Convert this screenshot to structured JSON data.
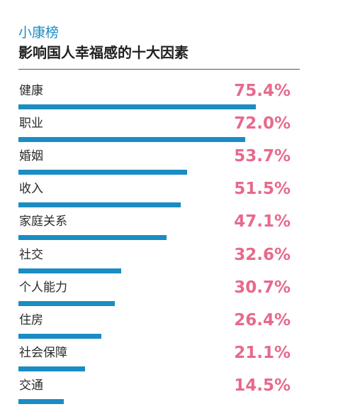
{
  "header": {
    "kicker": "小康榜",
    "title": "影响国人幸福感的十大因素"
  },
  "colors": {
    "accent_blue": "#1b8cc4",
    "value_pink": "#e76a8c",
    "text_dark": "#222222"
  },
  "chart_data": {
    "type": "bar",
    "orientation": "horizontal",
    "title": "影响国人幸福感的十大因素",
    "unit": "%",
    "categories": [
      "健康",
      "职业",
      "婚姻",
      "收入",
      "家庭关系",
      "社交",
      "个人能力",
      "住房",
      "社会保障",
      "交通"
    ],
    "values": [
      75.4,
      72.0,
      53.7,
      51.5,
      47.1,
      32.6,
      30.7,
      26.4,
      21.1,
      14.5
    ],
    "value_labels": [
      "75.4%",
      "72.0%",
      "53.7%",
      "51.5%",
      "47.1%",
      "32.6%",
      "30.7%",
      "26.4%",
      "21.1%",
      "14.5%"
    ],
    "xlim": [
      0,
      100
    ],
    "grid": false,
    "legend": "none"
  }
}
